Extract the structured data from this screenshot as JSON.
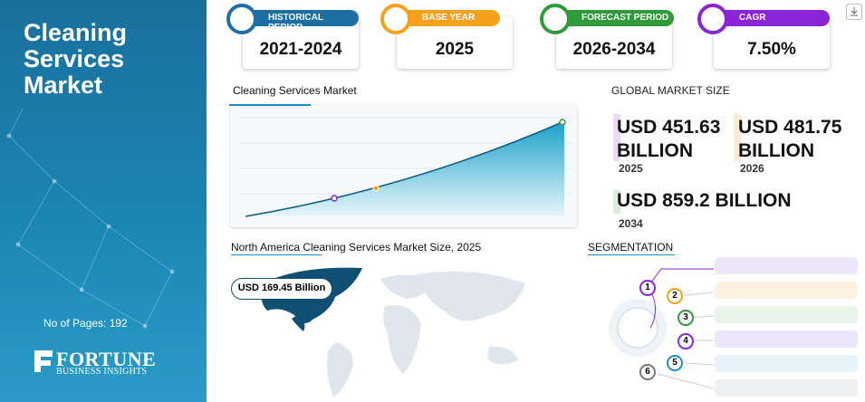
{
  "sidebar": {
    "title": "Cleaning Services Market",
    "pages": "No of Pages: 192",
    "logo": "FORTUNE",
    "logo_sub": "BUSINESS INSIGHTS"
  },
  "cards": [
    {
      "label": "HISTORICAL PERIOD",
      "value": "2021-2024"
    },
    {
      "label": "BASE YEAR",
      "value": "2025"
    },
    {
      "label": "FORECAST PERIOD",
      "value": "2026-2034"
    },
    {
      "label": "CAGR",
      "value": "7.50%"
    }
  ],
  "trend": {
    "title": "Cleaning Services Market"
  },
  "market_size": {
    "title": "GLOBAL MARKET SIZE",
    "items": [
      {
        "value": "USD 451.63 BILLION",
        "year": "2025"
      },
      {
        "value": "USD 481.75 BILLION",
        "year": "2026"
      },
      {
        "value": "USD 859.2 BILLION",
        "year": "2034"
      }
    ]
  },
  "regional": {
    "title": "North America Cleaning Services Market Size, 2025",
    "value": "USD 169.45 Billion"
  },
  "segmentation": {
    "title": "SEGMENTATION",
    "items": [
      "1",
      "2",
      "3",
      "4",
      "5",
      "6"
    ]
  }
}
